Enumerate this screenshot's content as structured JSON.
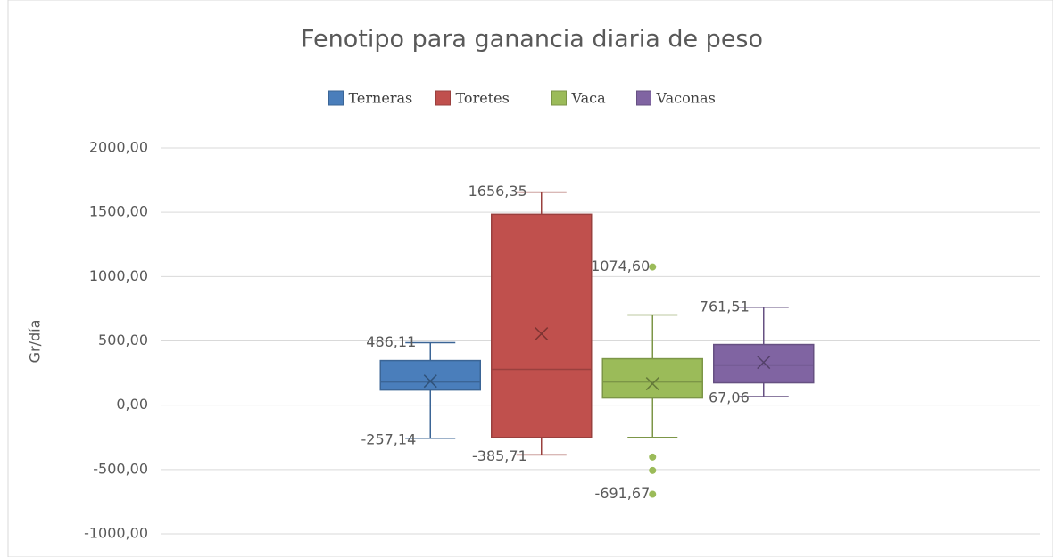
{
  "chart_data": {
    "type": "box",
    "title": "Fenotipo para ganancia diaria de peso",
    "y_label": "Gr/día",
    "ylim": [
      -1000,
      2000
    ],
    "yticks": [
      {
        "value": -1000,
        "label": "-1000,00"
      },
      {
        "value": -500,
        "label": "-500,00"
      },
      {
        "value": 0,
        "label": "0,00"
      },
      {
        "value": 500,
        "label": "500,00"
      },
      {
        "value": 1000,
        "label": "1000,00"
      },
      {
        "value": 1500,
        "label": "1500,00"
      },
      {
        "value": 2000,
        "label": "2000,00"
      }
    ],
    "grid": true,
    "legend": "top",
    "series": [
      {
        "name": "Terneras",
        "color": "#4a7ebb",
        "min": -257.14,
        "q1": 118,
        "median": 180,
        "q3": 347,
        "max": 486.11,
        "mean": 187,
        "outliers": [],
        "value_labels": {
          "min": "-257,14",
          "max": "486,11",
          "outliers": []
        }
      },
      {
        "name": "Toretes",
        "color": "#c0504d",
        "min": -385.71,
        "q1": -250,
        "median": 278,
        "q3": 1485,
        "max": 1656.35,
        "mean": 555,
        "outliers": [],
        "value_labels": {
          "min": "-385,71",
          "max": "1656,35",
          "outliers": []
        }
      },
      {
        "name": "Vaca",
        "color": "#9bbb59",
        "min": -250,
        "q1": 56,
        "median": 180,
        "q3": 361,
        "max": 701,
        "mean": 167,
        "outliers": [
          1074.6,
          -403,
          -507,
          -691.67
        ],
        "value_labels": {
          "min": null,
          "max": null,
          "outliers": [
            "1074,60",
            null,
            null,
            "-691,67"
          ]
        }
      },
      {
        "name": "Vaconas",
        "color": "#8064a2",
        "min": 67.06,
        "q1": 174,
        "median": 312,
        "q3": 472,
        "max": 761.51,
        "mean": 333,
        "outliers": [],
        "value_labels": {
          "min": "67,06",
          "max": "761,51",
          "outliers": []
        }
      }
    ]
  }
}
